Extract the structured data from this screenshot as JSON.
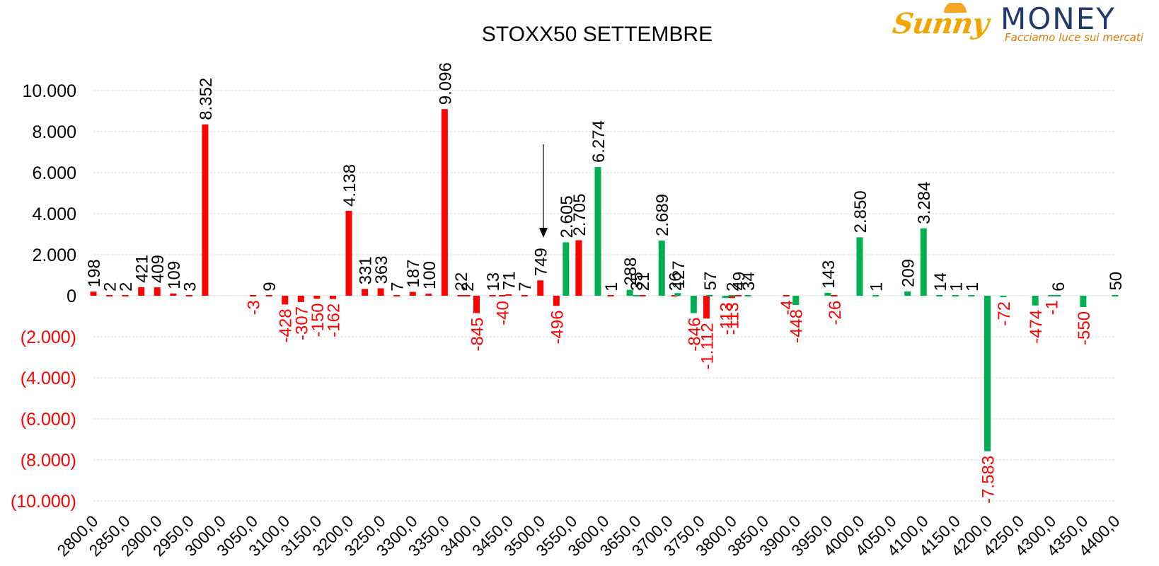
{
  "logo": {
    "brand_a": "Sunny",
    "brand_b": "MONEY",
    "tagline": "Facciamo luce sui mercati"
  },
  "colors": {
    "red": "#ff0000",
    "green": "#00b050",
    "text": "#000000",
    "grid": "#d9d9d9"
  },
  "chart_data": {
    "type": "bar",
    "title": "STOXX50 SETTEMBRE",
    "xlabel": "",
    "ylabel": "",
    "ylim": [
      -10000,
      10000
    ],
    "yticks": [
      10000,
      8000,
      6000,
      4000,
      2000,
      0,
      -2000,
      -4000,
      -6000,
      -8000,
      -10000
    ],
    "ytick_labels": [
      "10.000",
      "8.000",
      "6.000",
      "4.000",
      "2.000",
      "0",
      "(2.000)",
      "(4.000)",
      "(6.000)",
      "(8.000)",
      "(10.000)"
    ],
    "grid": true,
    "x_tick_labels": [
      "2800,0",
      "2850,0",
      "2900,0",
      "2950,0",
      "3000,0",
      "3050,0",
      "3100,0",
      "3150,0",
      "3200,0",
      "3250,0",
      "3300,0",
      "3350,0",
      "3400,0",
      "3450,0",
      "3500,0",
      "3550,0",
      "3600,0",
      "3650,0",
      "3700,0",
      "3750,0",
      "3800,0",
      "3850,0",
      "3900,0",
      "3950,0",
      "4000,0",
      "4050,0",
      "4100,0",
      "4150,0",
      "4200,0",
      "4250,0",
      "4300,0",
      "4350,0",
      "4400,0"
    ],
    "series": [
      {
        "color": "#ff0000",
        "points": [
          {
            "x": 2800,
            "y": 198,
            "label": "198"
          },
          {
            "x": 2825,
            "y": 2,
            "label": "2"
          },
          {
            "x": 2850,
            "y": 2,
            "label": "2"
          },
          {
            "x": 2875,
            "y": 421,
            "label": "421"
          },
          {
            "x": 2900,
            "y": 409,
            "label": "409"
          },
          {
            "x": 2925,
            "y": 109,
            "label": "109"
          },
          {
            "x": 2950,
            "y": 3,
            "label": "3"
          },
          {
            "x": 2975,
            "y": 8352,
            "label": "8.352"
          },
          {
            "x": 3050,
            "y": -3,
            "label": "-3"
          },
          {
            "x": 3075,
            "y": 9,
            "label": "9"
          },
          {
            "x": 3100,
            "y": -428,
            "label": "-428"
          },
          {
            "x": 3125,
            "y": -307,
            "label": "-307"
          },
          {
            "x": 3150,
            "y": -150,
            "label": "-150"
          },
          {
            "x": 3175,
            "y": -162,
            "label": "-162"
          },
          {
            "x": 3200,
            "y": 4138,
            "label": "4.138"
          },
          {
            "x": 3225,
            "y": 331,
            "label": "331"
          },
          {
            "x": 3250,
            "y": 363,
            "label": "363"
          },
          {
            "x": 3275,
            "y": 7,
            "label": "7"
          },
          {
            "x": 3300,
            "y": 187,
            "label": "187"
          },
          {
            "x": 3325,
            "y": 100,
            "label": "100"
          },
          {
            "x": 3350,
            "y": 9096,
            "label": "9.096"
          },
          {
            "x": 3375,
            "y": 22,
            "label": "22"
          },
          {
            "x": 3385,
            "y": 2,
            "label": "2"
          },
          {
            "x": 3400,
            "y": -845,
            "label": "-845"
          },
          {
            "x": 3425,
            "y": 13,
            "label": "13"
          },
          {
            "x": 3440,
            "y": -40,
            "label": "-40"
          },
          {
            "x": 3450,
            "y": 71,
            "label": "71"
          },
          {
            "x": 3475,
            "y": 7,
            "label": "7"
          },
          {
            "x": 3500,
            "y": 749,
            "label": "749"
          },
          {
            "x": 3525,
            "y": -496,
            "label": "-496"
          },
          {
            "x": 3560,
            "y": 2705,
            "label": "2.705"
          },
          {
            "x": 3610,
            "y": 1,
            "label": "1"
          },
          {
            "x": 3660,
            "y": 21,
            "label": "21"
          },
          {
            "x": 3710,
            "y": 26,
            "label": "26"
          },
          {
            "x": 3760,
            "y": -1112,
            "label": "-1.112"
          },
          {
            "x": 3800,
            "y": -113,
            "label": "-113"
          },
          {
            "x": 3810,
            "y": 49,
            "label": "49"
          },
          {
            "x": 3885,
            "y": -4,
            "label": "-4"
          },
          {
            "x": 3960,
            "y": -26,
            "label": "-26"
          }
        ]
      },
      {
        "color": "#00b050",
        "points": [
          {
            "x": 3540,
            "y": 2605,
            "label": "2.605"
          },
          {
            "x": 3590,
            "y": 6274,
            "label": "6.274"
          },
          {
            "x": 3640,
            "y": 288,
            "label": "288"
          },
          {
            "x": 3650,
            "y": 35,
            "label": "35"
          },
          {
            "x": 3690,
            "y": 2689,
            "label": "2.689"
          },
          {
            "x": 3715,
            "y": 127,
            "label": "127"
          },
          {
            "x": 3740,
            "y": -846,
            "label": "-846"
          },
          {
            "x": 3765,
            "y": 57,
            "label": "57"
          },
          {
            "x": 3790,
            "y": -113,
            "label": "-113"
          },
          {
            "x": 3800,
            "y": 2,
            "label": "2"
          },
          {
            "x": 3825,
            "y": 34,
            "label": "34"
          },
          {
            "x": 3900,
            "y": -448,
            "label": "-448"
          },
          {
            "x": 3950,
            "y": 143,
            "label": "143"
          },
          {
            "x": 4000,
            "y": 2850,
            "label": "2.850"
          },
          {
            "x": 4025,
            "y": 1,
            "label": "1"
          },
          {
            "x": 4075,
            "y": 209,
            "label": "209"
          },
          {
            "x": 4100,
            "y": 3284,
            "label": "3.284"
          },
          {
            "x": 4125,
            "y": 14,
            "label": "14"
          },
          {
            "x": 4150,
            "y": 1,
            "label": "1"
          },
          {
            "x": 4175,
            "y": 1,
            "label": "1"
          },
          {
            "x": 4200,
            "y": -7583,
            "label": "-7.583"
          },
          {
            "x": 4225,
            "y": -72,
            "label": "-72"
          },
          {
            "x": 4275,
            "y": -474,
            "label": "-474"
          },
          {
            "x": 4300,
            "y": -1,
            "label": "-1"
          },
          {
            "x": 4310,
            "y": 6,
            "label": "6"
          },
          {
            "x": 4350,
            "y": -550,
            "label": "-550"
          },
          {
            "x": 4400,
            "y": 50,
            "label": "50"
          }
        ]
      }
    ]
  }
}
